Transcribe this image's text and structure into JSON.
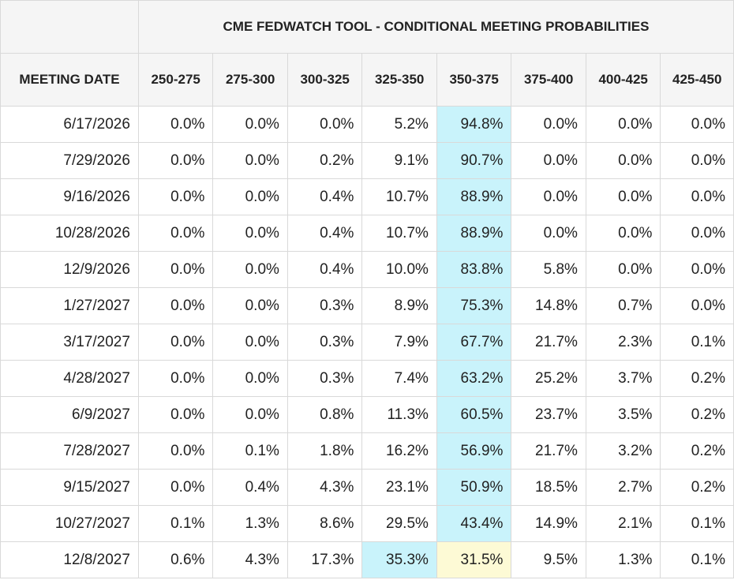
{
  "table": {
    "title": "CME FEDWATCH TOOL - CONDITIONAL MEETING PROBABILITIES",
    "date_header": "MEETING DATE",
    "columns": [
      "250-275",
      "275-300",
      "300-325",
      "325-350",
      "350-375",
      "375-400",
      "400-425",
      "425-450"
    ],
    "rows": [
      {
        "date": "6/17/2026",
        "values": [
          "0.0%",
          "0.0%",
          "0.0%",
          "5.2%",
          "94.8%",
          "0.0%",
          "0.0%",
          "0.0%"
        ],
        "highlight": {
          "4": "cyan"
        }
      },
      {
        "date": "7/29/2026",
        "values": [
          "0.0%",
          "0.0%",
          "0.2%",
          "9.1%",
          "90.7%",
          "0.0%",
          "0.0%",
          "0.0%"
        ],
        "highlight": {
          "4": "cyan"
        }
      },
      {
        "date": "9/16/2026",
        "values": [
          "0.0%",
          "0.0%",
          "0.4%",
          "10.7%",
          "88.9%",
          "0.0%",
          "0.0%",
          "0.0%"
        ],
        "highlight": {
          "4": "cyan"
        }
      },
      {
        "date": "10/28/2026",
        "values": [
          "0.0%",
          "0.0%",
          "0.4%",
          "10.7%",
          "88.9%",
          "0.0%",
          "0.0%",
          "0.0%"
        ],
        "highlight": {
          "4": "cyan"
        }
      },
      {
        "date": "12/9/2026",
        "values": [
          "0.0%",
          "0.0%",
          "0.4%",
          "10.0%",
          "83.8%",
          "5.8%",
          "0.0%",
          "0.0%"
        ],
        "highlight": {
          "4": "cyan"
        }
      },
      {
        "date": "1/27/2027",
        "values": [
          "0.0%",
          "0.0%",
          "0.3%",
          "8.9%",
          "75.3%",
          "14.8%",
          "0.7%",
          "0.0%"
        ],
        "highlight": {
          "4": "cyan"
        }
      },
      {
        "date": "3/17/2027",
        "values": [
          "0.0%",
          "0.0%",
          "0.3%",
          "7.9%",
          "67.7%",
          "21.7%",
          "2.3%",
          "0.1%"
        ],
        "highlight": {
          "4": "cyan"
        }
      },
      {
        "date": "4/28/2027",
        "values": [
          "0.0%",
          "0.0%",
          "0.3%",
          "7.4%",
          "63.2%",
          "25.2%",
          "3.7%",
          "0.2%"
        ],
        "highlight": {
          "4": "cyan"
        }
      },
      {
        "date": "6/9/2027",
        "values": [
          "0.0%",
          "0.0%",
          "0.8%",
          "11.3%",
          "60.5%",
          "23.7%",
          "3.5%",
          "0.2%"
        ],
        "highlight": {
          "4": "cyan"
        }
      },
      {
        "date": "7/28/2027",
        "values": [
          "0.0%",
          "0.1%",
          "1.8%",
          "16.2%",
          "56.9%",
          "21.7%",
          "3.2%",
          "0.2%"
        ],
        "highlight": {
          "4": "cyan"
        }
      },
      {
        "date": "9/15/2027",
        "values": [
          "0.0%",
          "0.4%",
          "4.3%",
          "23.1%",
          "50.9%",
          "18.5%",
          "2.7%",
          "0.2%"
        ],
        "highlight": {
          "4": "cyan"
        }
      },
      {
        "date": "10/27/2027",
        "values": [
          "0.1%",
          "1.3%",
          "8.6%",
          "29.5%",
          "43.4%",
          "14.9%",
          "2.1%",
          "0.1%"
        ],
        "highlight": {
          "4": "cyan"
        }
      },
      {
        "date": "12/8/2027",
        "values": [
          "0.6%",
          "4.3%",
          "17.3%",
          "35.3%",
          "31.5%",
          "9.5%",
          "1.3%",
          "0.1%"
        ],
        "highlight": {
          "3": "cyan",
          "4": "yellow"
        }
      }
    ]
  },
  "colors": {
    "highlight_cyan": "#c9f3fb",
    "highlight_yellow": "#fdfad5",
    "header_bg": "#f5f5f5",
    "border": "#d9d9d9"
  }
}
